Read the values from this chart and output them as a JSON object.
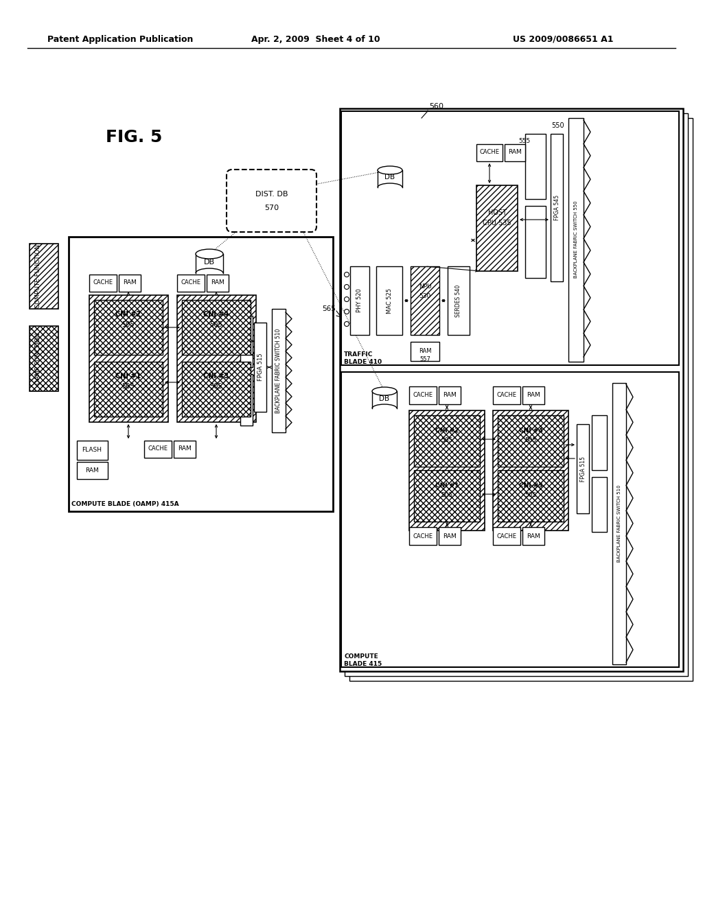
{
  "title_header_left": "Patent Application Publication",
  "title_header_mid": "Apr. 2, 2009  Sheet 4 of 10",
  "title_header_right": "US 2009/0086651 A1",
  "fig_label": "FIG. 5",
  "bg_color": "#ffffff"
}
